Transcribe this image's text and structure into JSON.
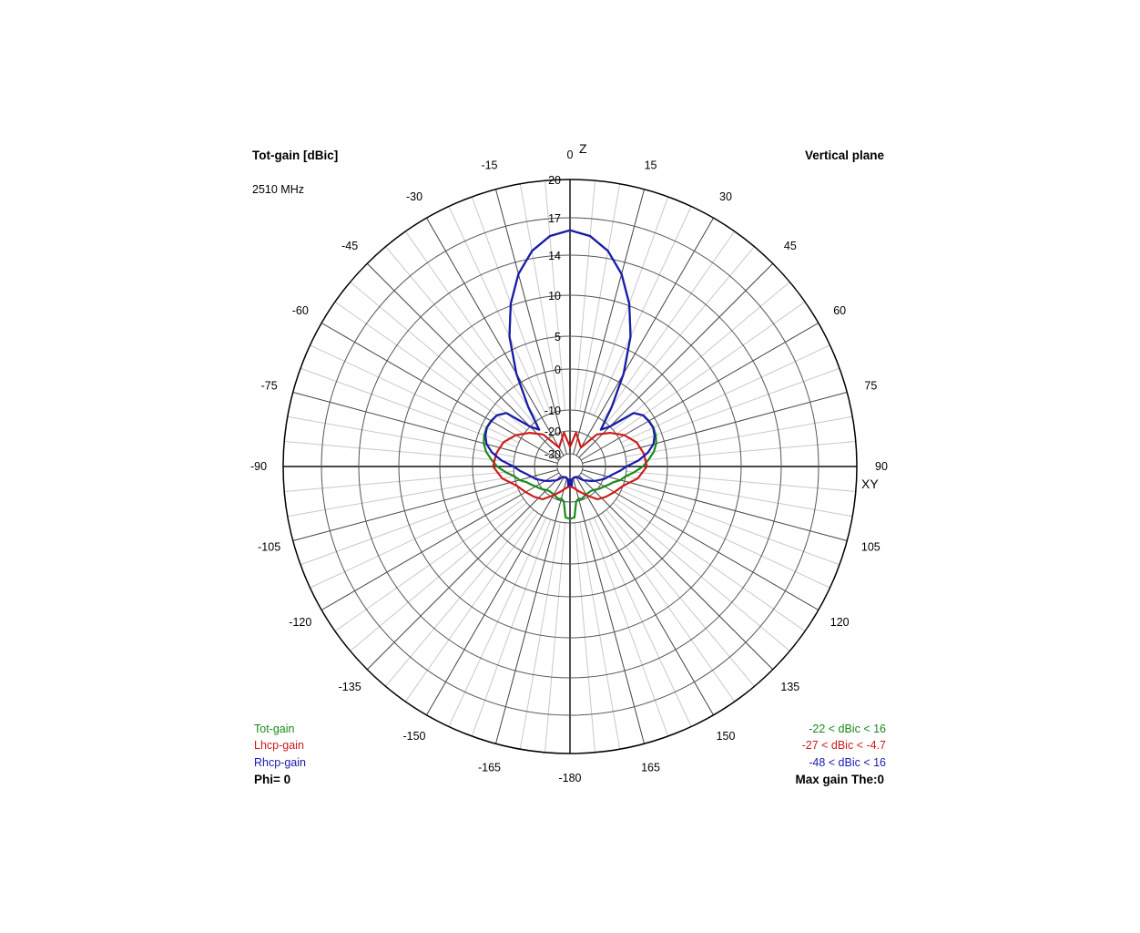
{
  "title": "Tot-gain [dBic]",
  "frequency": "2510 MHz",
  "plane": "Vertical plane",
  "axis_top": "Z",
  "axis_right": "XY",
  "phi": "Phi= 0",
  "max_gain": "Max gain The:0",
  "legend": [
    {
      "name": "Tot-gain",
      "color": "#1a8a1a",
      "range": "-22 < dBic < 16"
    },
    {
      "name": "Lhcp-gain",
      "color": "#d01a1a",
      "range": "-27 < dBic < -4.7"
    },
    {
      "name": "Rhcp-gain",
      "color": "#1a1ab0",
      "range": "-48 < dBic < 16"
    }
  ],
  "chart_data": {
    "type": "polar",
    "angle_ticks": [
      0,
      15,
      30,
      45,
      60,
      75,
      90,
      105,
      120,
      135,
      150,
      165,
      -180,
      -165,
      -150,
      -135,
      -120,
      -105,
      -90,
      -75,
      -60,
      -45,
      -30,
      -15
    ],
    "radial_ticks": [
      20,
      17,
      14,
      10,
      5,
      0,
      -10,
      -20,
      -30
    ],
    "radial_unit": "dBic",
    "series": [
      {
        "name": "Tot-gain",
        "color": "#1a8a1a",
        "theta": [
          0,
          5,
          10,
          15,
          20,
          25,
          30,
          35,
          40,
          45,
          50,
          55,
          60,
          65,
          70,
          75,
          80,
          85,
          90,
          95,
          100,
          105,
          110,
          115,
          120,
          125,
          130,
          135,
          140,
          145,
          150,
          155,
          160,
          165,
          170,
          175,
          180
        ],
        "gain": [
          16,
          15.6,
          14.6,
          12.8,
          10.2,
          6.6,
          1.5,
          -6,
          -14,
          -10,
          -3.5,
          -2,
          -1.5,
          -1.3,
          -1.5,
          -2,
          -3,
          -4.5,
          -6,
          -8,
          -10,
          -12,
          -15,
          -16.5,
          -18,
          -19,
          -20,
          -21,
          -21.5,
          -21.5,
          -21.5,
          -21,
          -20.5,
          -21,
          -20,
          -12.5,
          -12
        ]
      },
      {
        "name": "Lhcp-gain",
        "color": "#d01a1a",
        "theta": [
          0,
          10,
          20,
          30,
          40,
          50,
          60,
          70,
          80,
          90,
          100,
          110,
          120,
          130,
          140,
          150,
          160,
          170,
          180
        ],
        "gain": [
          -27,
          -20.5,
          -24,
          -26,
          -17,
          -12,
          -8.5,
          -6.5,
          -5.5,
          -5,
          -7,
          -10,
          -12.5,
          -14.5,
          -16.5,
          -21,
          -24,
          -26,
          -27
        ]
      },
      {
        "name": "Rhcp-gain",
        "color": "#1a1ab0",
        "theta": [
          0,
          5,
          10,
          15,
          20,
          25,
          30,
          35,
          40,
          45,
          50,
          55,
          60,
          65,
          70,
          75,
          80,
          85,
          90,
          95,
          100,
          105,
          110,
          115,
          120,
          125,
          130,
          135,
          140,
          145,
          150,
          155,
          160,
          165,
          170,
          175,
          180
        ],
        "gain": [
          16,
          15.6,
          14.6,
          12.8,
          10.2,
          6.6,
          1.5,
          -6,
          -14,
          -10,
          -3.5,
          -2,
          -1.6,
          -1.4,
          -1.8,
          -2.7,
          -4.5,
          -7,
          -10,
          -13,
          -16,
          -18,
          -19.5,
          -21.5,
          -23,
          -24.5,
          -26,
          -27,
          -28.5,
          -30,
          -31,
          -31.5,
          -32,
          -31,
          -30,
          -27,
          -30
        ]
      }
    ]
  }
}
